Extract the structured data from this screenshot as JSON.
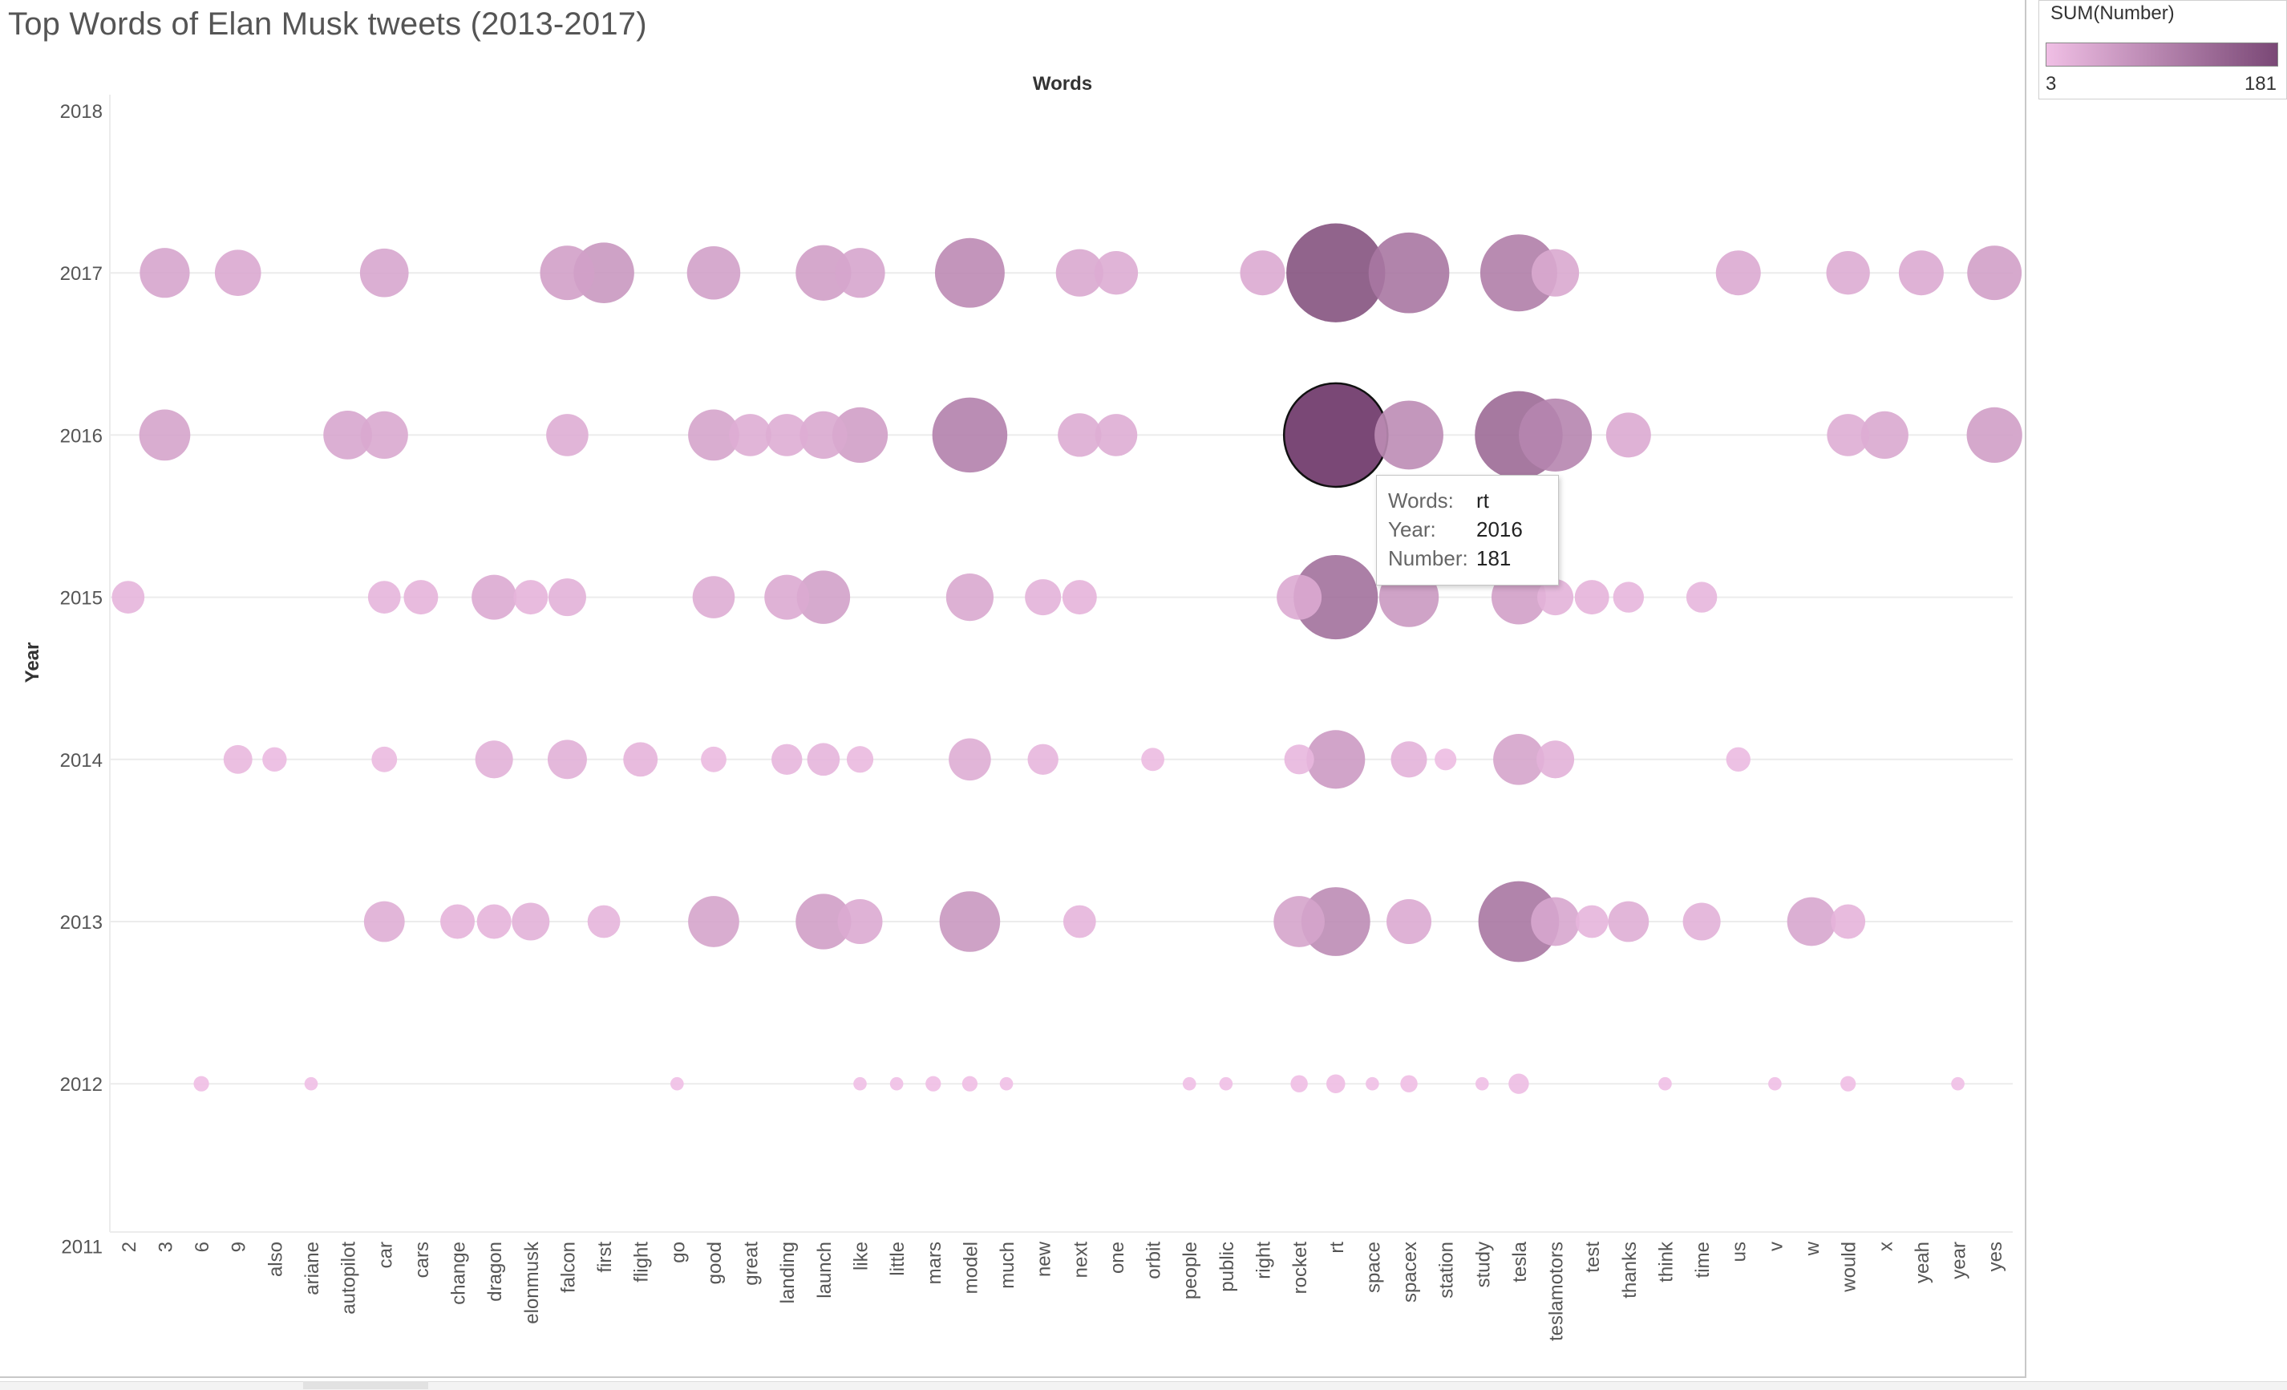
{
  "chart_data": {
    "type": "scatter",
    "title": "Top Words of Elan Musk tweets (2013-2017)",
    "xlabel": "Words",
    "ylabel": "Year",
    "categories": [
      "2",
      "3",
      "6",
      "9",
      "also",
      "ariane",
      "autopilot",
      "car",
      "cars",
      "change",
      "dragon",
      "elonmusk",
      "falcon",
      "first",
      "flight",
      "go",
      "good",
      "great",
      "landing",
      "launch",
      "like",
      "little",
      "mars",
      "model",
      "much",
      "new",
      "next",
      "one",
      "orbit",
      "people",
      "public",
      "right",
      "rocket",
      "rt",
      "space",
      "spacex",
      "station",
      "study",
      "tesla",
      "teslamotors",
      "test",
      "thanks",
      "think",
      "time",
      "us",
      "v",
      "w",
      "would",
      "x",
      "yeah",
      "year",
      "yes"
    ],
    "y_ticks": [
      2018,
      2017,
      2016,
      2015,
      2014,
      2013,
      2012,
      2011
    ],
    "ylim": [
      2011,
      2018
    ],
    "size_and_color_encode": "SUM(Number)",
    "grid": true,
    "points": [
      {
        "word": "3",
        "year": 2017,
        "number": 42
      },
      {
        "word": "9",
        "year": 2017,
        "number": 36
      },
      {
        "word": "car",
        "year": 2017,
        "number": 40
      },
      {
        "word": "falcon",
        "year": 2017,
        "number": 50
      },
      {
        "word": "first",
        "year": 2017,
        "number": 62
      },
      {
        "word": "good",
        "year": 2017,
        "number": 48
      },
      {
        "word": "launch",
        "year": 2017,
        "number": 52
      },
      {
        "word": "like",
        "year": 2017,
        "number": 42
      },
      {
        "word": "model",
        "year": 2017,
        "number": 82
      },
      {
        "word": "next",
        "year": 2017,
        "number": 38
      },
      {
        "word": "one",
        "year": 2017,
        "number": 32
      },
      {
        "word": "right",
        "year": 2017,
        "number": 34
      },
      {
        "word": "rt",
        "year": 2017,
        "number": 165
      },
      {
        "word": "spacex",
        "year": 2017,
        "number": 110
      },
      {
        "word": "tesla",
        "year": 2017,
        "number": 100
      },
      {
        "word": "teslamotors",
        "year": 2017,
        "number": 38
      },
      {
        "word": "us",
        "year": 2017,
        "number": 34
      },
      {
        "word": "would",
        "year": 2017,
        "number": 32
      },
      {
        "word": "yeah",
        "year": 2017,
        "number": 34
      },
      {
        "word": "yes",
        "year": 2017,
        "number": 50
      },
      {
        "word": "3",
        "year": 2016,
        "number": 44
      },
      {
        "word": "autopilot",
        "year": 2016,
        "number": 40
      },
      {
        "word": "car",
        "year": 2016,
        "number": 38
      },
      {
        "word": "falcon",
        "year": 2016,
        "number": 30
      },
      {
        "word": "good",
        "year": 2016,
        "number": 44
      },
      {
        "word": "great",
        "year": 2016,
        "number": 30
      },
      {
        "word": "landing",
        "year": 2016,
        "number": 30
      },
      {
        "word": "launch",
        "year": 2016,
        "number": 38
      },
      {
        "word": "like",
        "year": 2016,
        "number": 52
      },
      {
        "word": "model",
        "year": 2016,
        "number": 95
      },
      {
        "word": "next",
        "year": 2016,
        "number": 32
      },
      {
        "word": "one",
        "year": 2016,
        "number": 30
      },
      {
        "word": "rt",
        "year": 2016,
        "number": 181
      },
      {
        "word": "spacex",
        "year": 2016,
        "number": 80
      },
      {
        "word": "tesla",
        "year": 2016,
        "number": 130
      },
      {
        "word": "teslamotors",
        "year": 2016,
        "number": 90
      },
      {
        "word": "thanks",
        "year": 2016,
        "number": 34
      },
      {
        "word": "would",
        "year": 2016,
        "number": 30
      },
      {
        "word": "x",
        "year": 2016,
        "number": 38
      },
      {
        "word": "yes",
        "year": 2016,
        "number": 52
      },
      {
        "word": "2",
        "year": 2015,
        "number": 18
      },
      {
        "word": "car",
        "year": 2015,
        "number": 18
      },
      {
        "word": "cars",
        "year": 2015,
        "number": 20
      },
      {
        "word": "dragon",
        "year": 2015,
        "number": 34
      },
      {
        "word": "elonmusk",
        "year": 2015,
        "number": 20
      },
      {
        "word": "falcon",
        "year": 2015,
        "number": 24
      },
      {
        "word": "good",
        "year": 2015,
        "number": 30
      },
      {
        "word": "landing",
        "year": 2015,
        "number": 34
      },
      {
        "word": "launch",
        "year": 2015,
        "number": 48
      },
      {
        "word": "model",
        "year": 2015,
        "number": 38
      },
      {
        "word": "new",
        "year": 2015,
        "number": 22
      },
      {
        "word": "next",
        "year": 2015,
        "number": 20
      },
      {
        "word": "rocket",
        "year": 2015,
        "number": 34
      },
      {
        "word": "rt",
        "year": 2015,
        "number": 120
      },
      {
        "word": "spacex",
        "year": 2015,
        "number": 60
      },
      {
        "word": "tesla",
        "year": 2015,
        "number": 50
      },
      {
        "word": "teslamotors",
        "year": 2015,
        "number": 22
      },
      {
        "word": "test",
        "year": 2015,
        "number": 20
      },
      {
        "word": "thanks",
        "year": 2015,
        "number": 16
      },
      {
        "word": "time",
        "year": 2015,
        "number": 16
      },
      {
        "word": "9",
        "year": 2014,
        "number": 14
      },
      {
        "word": "also",
        "year": 2014,
        "number": 10
      },
      {
        "word": "car",
        "year": 2014,
        "number": 11
      },
      {
        "word": "dragon",
        "year": 2014,
        "number": 24
      },
      {
        "word": "falcon",
        "year": 2014,
        "number": 26
      },
      {
        "word": "flight",
        "year": 2014,
        "number": 20
      },
      {
        "word": "good",
        "year": 2014,
        "number": 11
      },
      {
        "word": "landing",
        "year": 2014,
        "number": 16
      },
      {
        "word": "launch",
        "year": 2014,
        "number": 18
      },
      {
        "word": "like",
        "year": 2014,
        "number": 12
      },
      {
        "word": "model",
        "year": 2014,
        "number": 30
      },
      {
        "word": "new",
        "year": 2014,
        "number": 16
      },
      {
        "word": "orbit",
        "year": 2014,
        "number": 9
      },
      {
        "word": "rocket",
        "year": 2014,
        "number": 15
      },
      {
        "word": "rt",
        "year": 2014,
        "number": 58
      },
      {
        "word": "spacex",
        "year": 2014,
        "number": 22
      },
      {
        "word": "station",
        "year": 2014,
        "number": 8
      },
      {
        "word": "tesla",
        "year": 2014,
        "number": 44
      },
      {
        "word": "teslamotors",
        "year": 2014,
        "number": 24
      },
      {
        "word": "us",
        "year": 2014,
        "number": 10
      },
      {
        "word": "car",
        "year": 2013,
        "number": 28
      },
      {
        "word": "change",
        "year": 2013,
        "number": 20
      },
      {
        "word": "dragon",
        "year": 2013,
        "number": 20
      },
      {
        "word": "elonmusk",
        "year": 2013,
        "number": 24
      },
      {
        "word": "first",
        "year": 2013,
        "number": 18
      },
      {
        "word": "good",
        "year": 2013,
        "number": 44
      },
      {
        "word": "launch",
        "year": 2013,
        "number": 52
      },
      {
        "word": "like",
        "year": 2013,
        "number": 34
      },
      {
        "word": "model",
        "year": 2013,
        "number": 62
      },
      {
        "word": "next",
        "year": 2013,
        "number": 18
      },
      {
        "word": "rocket",
        "year": 2013,
        "number": 44
      },
      {
        "word": "rt",
        "year": 2013,
        "number": 80
      },
      {
        "word": "spacex",
        "year": 2013,
        "number": 34
      },
      {
        "word": "tesla",
        "year": 2013,
        "number": 110
      },
      {
        "word": "teslamotors",
        "year": 2013,
        "number": 40
      },
      {
        "word": "test",
        "year": 2013,
        "number": 18
      },
      {
        "word": "thanks",
        "year": 2013,
        "number": 28
      },
      {
        "word": "time",
        "year": 2013,
        "number": 24
      },
      {
        "word": "w",
        "year": 2013,
        "number": 40
      },
      {
        "word": "would",
        "year": 2013,
        "number": 20
      },
      {
        "word": "6",
        "year": 2012,
        "number": 4
      },
      {
        "word": "ariane",
        "year": 2012,
        "number": 3
      },
      {
        "word": "go",
        "year": 2012,
        "number": 3
      },
      {
        "word": "like",
        "year": 2012,
        "number": 3
      },
      {
        "word": "little",
        "year": 2012,
        "number": 3
      },
      {
        "word": "mars",
        "year": 2012,
        "number": 4
      },
      {
        "word": "model",
        "year": 2012,
        "number": 4
      },
      {
        "word": "much",
        "year": 2012,
        "number": 3
      },
      {
        "word": "people",
        "year": 2012,
        "number": 3
      },
      {
        "word": "public",
        "year": 2012,
        "number": 3
      },
      {
        "word": "rocket",
        "year": 2012,
        "number": 5
      },
      {
        "word": "rt",
        "year": 2012,
        "number": 6
      },
      {
        "word": "space",
        "year": 2012,
        "number": 3
      },
      {
        "word": "spacex",
        "year": 2012,
        "number": 5
      },
      {
        "word": "study",
        "year": 2012,
        "number": 3
      },
      {
        "word": "tesla",
        "year": 2012,
        "number": 7
      },
      {
        "word": "think",
        "year": 2012,
        "number": 3
      },
      {
        "word": "v",
        "year": 2012,
        "number": 3
      },
      {
        "word": "would",
        "year": 2012,
        "number": 4
      },
      {
        "word": "year",
        "year": 2012,
        "number": 3
      }
    ],
    "highlight": {
      "word": "rt",
      "year": 2016,
      "number": 181
    }
  },
  "legend": {
    "title": "SUM(Number)",
    "min_label": "3",
    "max_label": "181",
    "min": 3,
    "max": 181,
    "color_low": "#f0bfe5",
    "color_high": "#7a4876"
  },
  "tooltip": {
    "word_key": "Words:",
    "word_val": "rt",
    "year_key": "Year:",
    "year_val": "2016",
    "number_key": "Number:",
    "number_val": "181"
  },
  "colors": {
    "gridline": "#ececec",
    "tick_text": "#555555",
    "axis_title": "#333333"
  }
}
